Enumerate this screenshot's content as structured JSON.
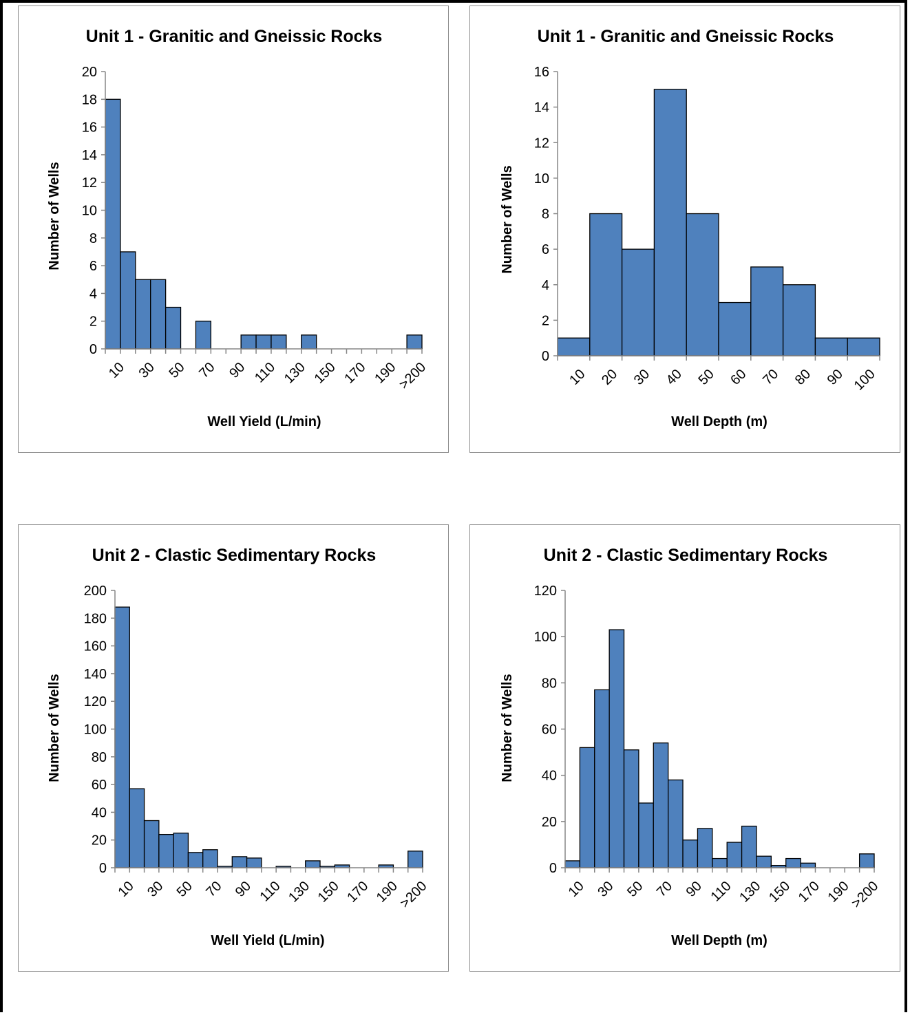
{
  "colors": {
    "bar_fill": "#4f81bd",
    "axis": "#868686",
    "panel_border": "#8c8c8c"
  },
  "chart_data": [
    {
      "type": "bar",
      "title": "Unit 1 - Granitic and Gneissic Rocks",
      "xlabel": "Well Yield (L/min)",
      "ylabel": "Number of Wells",
      "ylim": [
        0,
        20
      ],
      "ytick_step": 2,
      "categories": [
        "10",
        "20",
        "30",
        "40",
        "50",
        "60",
        "70",
        "80",
        "90",
        "100",
        "110",
        "120",
        "130",
        "140",
        "150",
        "160",
        "170",
        "180",
        "190",
        "200",
        ">200"
      ],
      "tick_labels": [
        "10",
        "30",
        "50",
        "70",
        "90",
        "110",
        "130",
        "150",
        "170",
        "190",
        ">200"
      ],
      "values": [
        18,
        7,
        5,
        5,
        3,
        0,
        2,
        0,
        0,
        1,
        1,
        1,
        0,
        1,
        0,
        0,
        0,
        0,
        0,
        0,
        1
      ],
      "grid": false,
      "legend": "none"
    },
    {
      "type": "bar",
      "title": "Unit 1 - Granitic and Gneissic Rocks",
      "xlabel": "Well Depth (m)",
      "ylabel": "Number of Wells",
      "ylim": [
        0,
        16
      ],
      "ytick_step": 2,
      "categories": [
        "10",
        "20",
        "30",
        "40",
        "50",
        "60",
        "70",
        "80",
        "90",
        "100"
      ],
      "tick_labels": [
        "10",
        "20",
        "30",
        "40",
        "50",
        "60",
        "70",
        "80",
        "90",
        "100"
      ],
      "values": [
        1,
        8,
        6,
        15,
        8,
        3,
        5,
        4,
        1,
        1
      ],
      "grid": false,
      "legend": "none"
    },
    {
      "type": "bar",
      "title": "Unit 2 - Clastic Sedimentary Rocks",
      "xlabel": "Well Yield (L/min)",
      "ylabel": "Number of Wells",
      "ylim": [
        0,
        200
      ],
      "ytick_step": 20,
      "categories": [
        "10",
        "20",
        "30",
        "40",
        "50",
        "60",
        "70",
        "80",
        "90",
        "100",
        "110",
        "120",
        "130",
        "140",
        "150",
        "160",
        "170",
        "180",
        "190",
        "200",
        ">200"
      ],
      "tick_labels": [
        "10",
        "30",
        "50",
        "70",
        "90",
        "110",
        "130",
        "150",
        "170",
        "190",
        ">200"
      ],
      "values": [
        188,
        57,
        34,
        24,
        25,
        11,
        13,
        1,
        8,
        7,
        0,
        1,
        0,
        5,
        1,
        2,
        0,
        0,
        2,
        0,
        12
      ],
      "grid": false,
      "legend": "none"
    },
    {
      "type": "bar",
      "title": "Unit 2 - Clastic Sedimentary Rocks",
      "xlabel": "Well Depth (m)",
      "ylabel": "Number of Wells",
      "ylim": [
        0,
        120
      ],
      "ytick_step": 20,
      "categories": [
        "10",
        "20",
        "30",
        "40",
        "50",
        "60",
        "70",
        "80",
        "90",
        "100",
        "110",
        "120",
        "130",
        "140",
        "150",
        "160",
        "170",
        "180",
        "190",
        "200",
        ">200"
      ],
      "tick_labels": [
        "10",
        "30",
        "50",
        "70",
        "90",
        "110",
        "130",
        "150",
        "170",
        "190",
        ">200"
      ],
      "values": [
        3,
        52,
        77,
        103,
        51,
        28,
        54,
        38,
        12,
        17,
        4,
        11,
        18,
        5,
        1,
        4,
        2,
        0,
        0,
        0,
        6
      ],
      "grid": false,
      "legend": "none"
    }
  ]
}
